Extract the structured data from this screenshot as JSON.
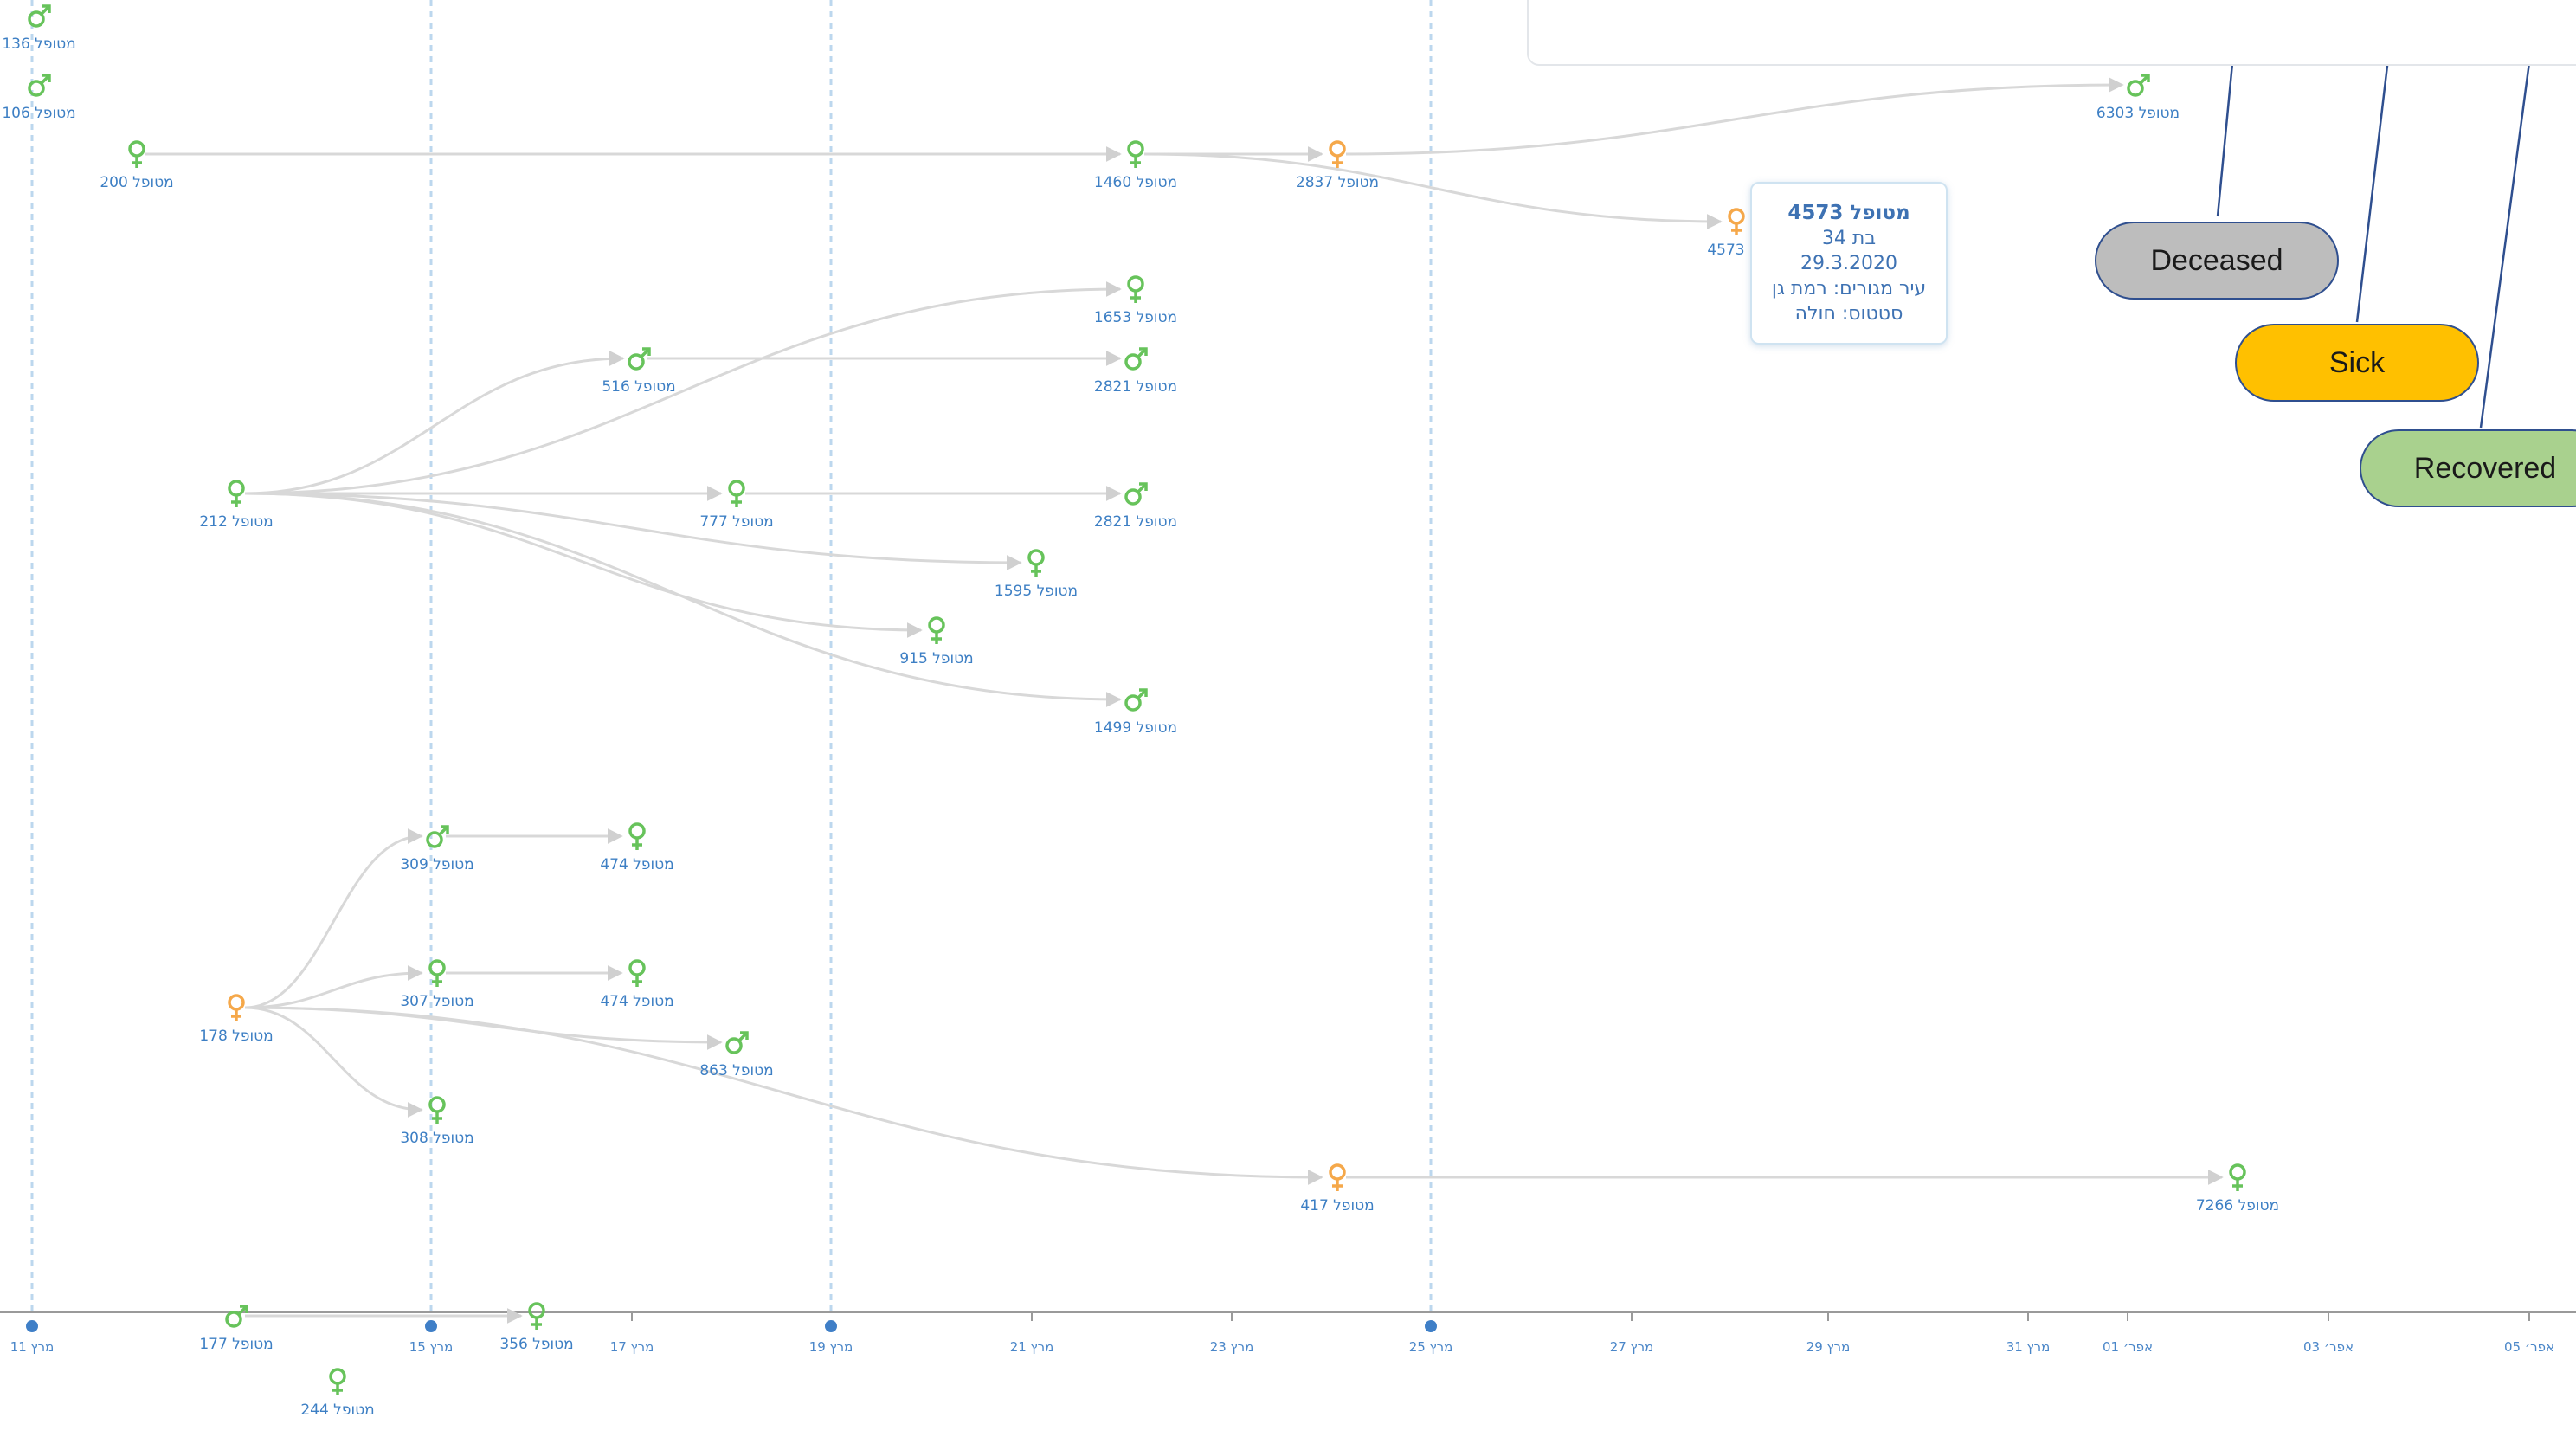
{
  "timeline": {
    "ticks": [
      {
        "label": "11 מרץ",
        "major": true
      },
      {
        "label": "15 מרץ",
        "major": true
      },
      {
        "label": "17 מרץ",
        "major": false
      },
      {
        "label": "19 מרץ",
        "major": true
      },
      {
        "label": "21 מרץ",
        "major": false
      },
      {
        "label": "23 מרץ",
        "major": false
      },
      {
        "label": "25 מרץ",
        "major": true
      },
      {
        "label": "27 מרץ",
        "major": false
      },
      {
        "label": "29 מרץ",
        "major": false
      },
      {
        "label": "31 מרץ",
        "major": false
      },
      {
        "label": "01 אפר׳",
        "major": false
      },
      {
        "label": "03 אפר׳",
        "major": false
      },
      {
        "label": "05 אפר׳",
        "major": false
      }
    ]
  },
  "colors": {
    "recovered": "#67c35b",
    "sick": "#f5a84a",
    "deceased": "#b9b9b9",
    "edge": "#d8d8d8",
    "gridline": "#bcd7ee",
    "axis": "#9a9a9a",
    "legend_border": "#2f4f8f"
  },
  "nodes": [
    {
      "id": "n136",
      "label": "מטופל 136",
      "gender": "male",
      "status": "recovered"
    },
    {
      "id": "n106",
      "label": "מטופל 106",
      "gender": "male",
      "status": "recovered"
    },
    {
      "id": "n200",
      "label": "מטופל 200",
      "gender": "female",
      "status": "recovered"
    },
    {
      "id": "n1460",
      "label": "מטופל 1460",
      "gender": "female",
      "status": "recovered"
    },
    {
      "id": "n2837",
      "label": "מטופל 2837",
      "gender": "female",
      "status": "sick"
    },
    {
      "id": "n6303",
      "label": "מטופל 6303",
      "gender": "male",
      "status": "recovered"
    },
    {
      "id": "n4573",
      "label": "4573",
      "gender": "female",
      "status": "sick"
    },
    {
      "id": "n1653",
      "label": "מטופל 1653",
      "gender": "female",
      "status": "recovered"
    },
    {
      "id": "n516",
      "label": "מטופל 516",
      "gender": "male",
      "status": "recovered"
    },
    {
      "id": "n2821a",
      "label": "מטופל 2821",
      "gender": "male",
      "status": "recovered"
    },
    {
      "id": "n212",
      "label": "מטופל 212",
      "gender": "female",
      "status": "recovered"
    },
    {
      "id": "n777",
      "label": "מטופל 777",
      "gender": "female",
      "status": "recovered"
    },
    {
      "id": "n2821b",
      "label": "מטופל 2821",
      "gender": "male",
      "status": "recovered"
    },
    {
      "id": "n1595",
      "label": "מטופל 1595",
      "gender": "female",
      "status": "recovered"
    },
    {
      "id": "n915",
      "label": "מטופל 915",
      "gender": "female",
      "status": "recovered"
    },
    {
      "id": "n1499",
      "label": "מטופל 1499",
      "gender": "male",
      "status": "recovered"
    },
    {
      "id": "n309",
      "label": "מטופל 309",
      "gender": "male",
      "status": "recovered"
    },
    {
      "id": "n474a",
      "label": "מטופל 474",
      "gender": "female",
      "status": "recovered"
    },
    {
      "id": "n307",
      "label": "מטופל 307",
      "gender": "female",
      "status": "recovered"
    },
    {
      "id": "n474b",
      "label": "מטופל 474",
      "gender": "female",
      "status": "recovered"
    },
    {
      "id": "n178",
      "label": "מטופל 178",
      "gender": "female",
      "status": "sick"
    },
    {
      "id": "n863",
      "label": "מטופל 863",
      "gender": "male",
      "status": "recovered"
    },
    {
      "id": "n308",
      "label": "מטופל 308",
      "gender": "female",
      "status": "recovered"
    },
    {
      "id": "n417",
      "label": "מטופל 417",
      "gender": "female",
      "status": "sick"
    },
    {
      "id": "n7266",
      "label": "מטופל 7266",
      "gender": "female",
      "status": "recovered"
    },
    {
      "id": "n177",
      "label": "מטופל 177",
      "gender": "male",
      "status": "recovered"
    },
    {
      "id": "n356",
      "label": "מטופל 356",
      "gender": "female",
      "status": "recovered"
    },
    {
      "id": "n244",
      "label": "מטופל 244",
      "gender": "female",
      "status": "recovered"
    }
  ],
  "edges": [
    [
      "n200",
      "n1460"
    ],
    [
      "n1460",
      "n2837"
    ],
    [
      "n2837",
      "n6303"
    ],
    [
      "n1460",
      "n4573"
    ],
    [
      "n212",
      "n516"
    ],
    [
      "n212",
      "n1653"
    ],
    [
      "n516",
      "n2821a"
    ],
    [
      "n212",
      "n777"
    ],
    [
      "n777",
      "n2821b"
    ],
    [
      "n212",
      "n1595"
    ],
    [
      "n212",
      "n915"
    ],
    [
      "n212",
      "n1499"
    ],
    [
      "n178",
      "n309"
    ],
    [
      "n309",
      "n474a"
    ],
    [
      "n178",
      "n307"
    ],
    [
      "n307",
      "n474b"
    ],
    [
      "n178",
      "n863"
    ],
    [
      "n178",
      "n308"
    ],
    [
      "n178",
      "n417"
    ],
    [
      "n417",
      "n7266"
    ],
    [
      "n177",
      "n356"
    ]
  ],
  "tooltip": {
    "title": "מטופל 4573",
    "age": "בת 34",
    "date": "29.3.2020",
    "city": "עיר מגורים: רמת גן",
    "status": "סטטוס: חולה"
  },
  "legend": {
    "deceased": "Deceased",
    "sick": "Sick",
    "recovered": "Recovered"
  }
}
